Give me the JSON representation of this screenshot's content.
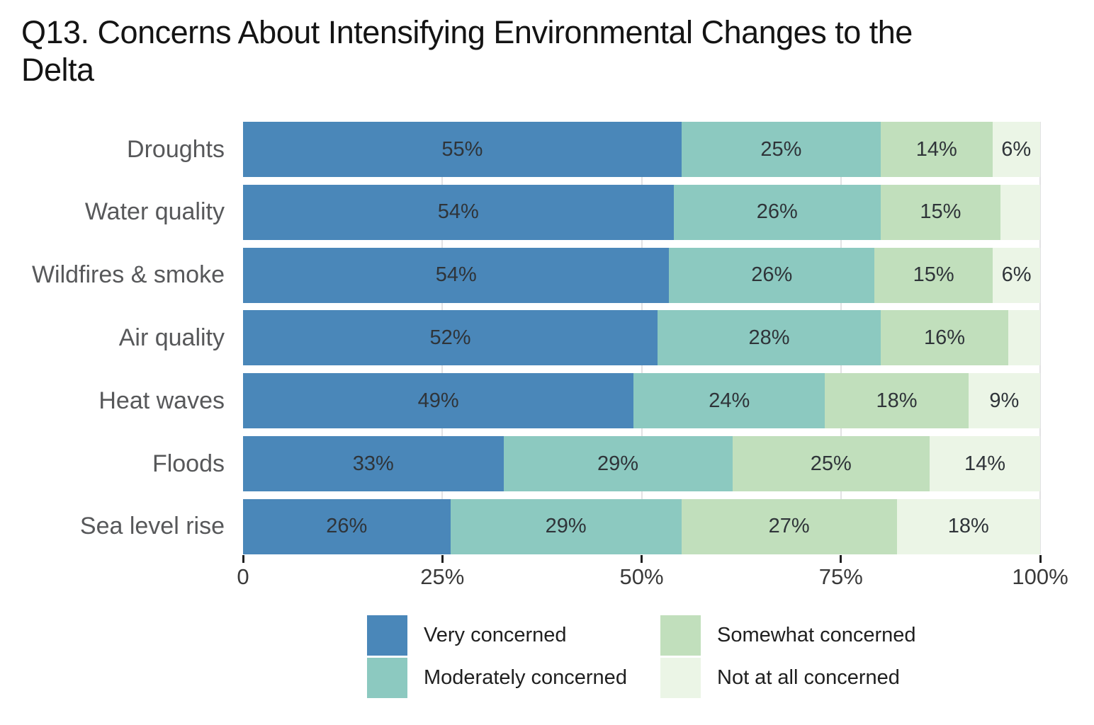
{
  "title_lines": [
    "Q13. Concerns About Intensifying Environmental Changes to the",
    "Delta"
  ],
  "chart_data": {
    "type": "bar",
    "orientation": "horizontal",
    "stacked": true,
    "title": "Q13. Concerns About Intensifying Environmental Changes to the Delta",
    "unit": "%",
    "categories": [
      "Droughts",
      "Water quality",
      "Wildfires & smoke",
      "Air quality",
      "Heat waves",
      "Floods",
      "Sea level rise"
    ],
    "series": [
      {
        "name": "Very concerned",
        "color": "#4a87b9",
        "values": [
          55,
          54,
          54,
          52,
          49,
          33,
          26
        ]
      },
      {
        "name": "Moderately concerned",
        "color": "#8cc9c0",
        "values": [
          25,
          26,
          26,
          28,
          24,
          29,
          29
        ]
      },
      {
        "name": "Somewhat concerned",
        "color": "#c1dfbc",
        "values": [
          14,
          15,
          15,
          16,
          18,
          25,
          27
        ]
      },
      {
        "name": "Not at all concerned",
        "color": "#ebf5e6",
        "values": [
          6,
          5,
          6,
          4,
          9,
          14,
          18
        ]
      }
    ],
    "segment_labels": [
      [
        "55%",
        "25%",
        "14%",
        "6%"
      ],
      [
        "54%",
        "26%",
        "15%",
        ""
      ],
      [
        "54%",
        "26%",
        "15%",
        "6%"
      ],
      [
        "52%",
        "28%",
        "16%",
        ""
      ],
      [
        "49%",
        "24%",
        "18%",
        "9%"
      ],
      [
        "33%",
        "29%",
        "25%",
        "14%"
      ],
      [
        "26%",
        "29%",
        "27%",
        "18%"
      ]
    ],
    "x_axis": {
      "range": [
        0,
        100
      ],
      "ticks": [
        {
          "value": 0,
          "label": "0"
        },
        {
          "value": 25,
          "label": "25%"
        },
        {
          "value": 50,
          "label": "50%"
        },
        {
          "value": 75,
          "label": "75%"
        },
        {
          "value": 100,
          "label": "100%"
        }
      ],
      "gridlines": [
        25,
        50,
        75,
        100
      ],
      "grid": true
    },
    "legend": {
      "position": "bottom",
      "columns": [
        [
          "Very concerned",
          "Moderately concerned"
        ],
        [
          "Somewhat concerned",
          "Not at all concerned"
        ]
      ]
    }
  }
}
